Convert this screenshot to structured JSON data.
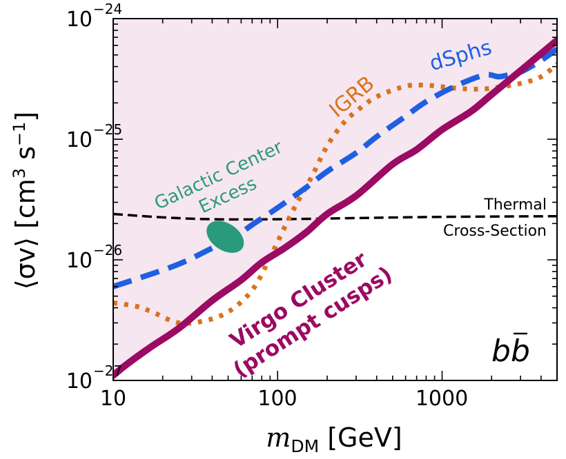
{
  "chart_data": {
    "type": "line",
    "x_scale": "log",
    "y_scale": "log",
    "xlim": [
      10,
      5000
    ],
    "ylim": [
      1e-27,
      1e-24
    ],
    "xlabel": {
      "m": "m",
      "sub": "DM",
      "rest": " [GeV]"
    },
    "ylabel": {
      "pre": "⟨σv⟩ [cm",
      "sup1": "3",
      "mid": " s",
      "sup2": "−1",
      "post": "]"
    },
    "x_ticks": [
      {
        "value": 10,
        "label": "10"
      },
      {
        "value": 100,
        "label": "100"
      },
      {
        "value": 1000,
        "label": "1000"
      }
    ],
    "y_ticks": [
      {
        "value": 1e-27,
        "base": "10",
        "exp": "−27"
      },
      {
        "value": 1e-26,
        "base": "10",
        "exp": "−26"
      },
      {
        "value": 1e-25,
        "base": "10",
        "exp": "−25"
      },
      {
        "value": 1e-24,
        "base": "10",
        "exp": "−24"
      }
    ],
    "grid": false,
    "series": [
      {
        "name": "Virgo Cluster (prompt cusps)",
        "color": "#9b0a63",
        "style": "solid-thick",
        "fill_above": "#f6e6f0",
        "points": [
          [
            10,
            1.1e-27
          ],
          [
            12,
            1.35e-27
          ],
          [
            17,
            1.9e-27
          ],
          [
            25,
            2.7e-27
          ],
          [
            40,
            4.6e-27
          ],
          [
            60,
            6.8e-27
          ],
          [
            80,
            9.5e-27
          ],
          [
            110,
            1.25e-26
          ],
          [
            150,
            1.7e-26
          ],
          [
            200,
            2.4e-26
          ],
          [
            300,
            3.4e-26
          ],
          [
            500,
            6.2e-26
          ],
          [
            700,
            8.2e-26
          ],
          [
            1000,
            1.2e-25
          ],
          [
            1500,
            1.7e-25
          ],
          [
            2000,
            2.35e-25
          ],
          [
            3000,
            3.7e-25
          ],
          [
            5000,
            6.6e-25
          ]
        ]
      },
      {
        "name": "dSphs",
        "color": "#1f5fe0",
        "style": "dashed-thick",
        "points": [
          [
            10,
            6e-27
          ],
          [
            15,
            7.2e-27
          ],
          [
            25,
            9.2e-27
          ],
          [
            40,
            1.25e-26
          ],
          [
            55,
            1.55e-26
          ],
          [
            70,
            1.95e-26
          ],
          [
            100,
            2.7e-26
          ],
          [
            150,
            4e-26
          ],
          [
            200,
            5.4e-26
          ],
          [
            300,
            7.7e-26
          ],
          [
            400,
            1.05e-25
          ],
          [
            600,
            1.55e-25
          ],
          [
            800,
            2.05e-25
          ],
          [
            1200,
            2.75e-25
          ],
          [
            1800,
            3.4e-25
          ],
          [
            2200,
            3.3e-25
          ],
          [
            2500,
            3.4e-25
          ],
          [
            3000,
            3.6e-25
          ],
          [
            4000,
            4.5e-25
          ],
          [
            5000,
            5.6e-25
          ]
        ]
      },
      {
        "name": "IGRB",
        "color": "#d9731d",
        "style": "dotted-thick",
        "points": [
          [
            10,
            4.4e-27
          ],
          [
            14,
            4.1e-27
          ],
          [
            18,
            3.6e-27
          ],
          [
            25,
            3e-27
          ],
          [
            35,
            3.1e-27
          ],
          [
            50,
            3.7e-27
          ],
          [
            70,
            5.6e-27
          ],
          [
            90,
            1.05e-26
          ],
          [
            110,
            1.85e-26
          ],
          [
            130,
            2.9e-26
          ],
          [
            160,
            4.8e-26
          ],
          [
            200,
            8.8e-26
          ],
          [
            250,
            1.35e-25
          ],
          [
            300,
            1.7e-25
          ],
          [
            400,
            2.25e-25
          ],
          [
            600,
            2.75e-25
          ],
          [
            800,
            2.8e-25
          ],
          [
            1200,
            2.65e-25
          ],
          [
            1600,
            2.6e-25
          ],
          [
            2000,
            2.65e-25
          ],
          [
            3000,
            2.9e-25
          ],
          [
            4000,
            3.3e-25
          ],
          [
            5000,
            4.2e-25
          ]
        ]
      },
      {
        "name": "Thermal Cross-Section",
        "color": "#000000",
        "style": "dashed-thin",
        "points": [
          [
            10,
            2.4e-26
          ],
          [
            20,
            2.25e-26
          ],
          [
            40,
            2.17e-26
          ],
          [
            100,
            2.17e-26
          ],
          [
            300,
            2.22e-26
          ],
          [
            1000,
            2.27e-26
          ],
          [
            5000,
            2.3e-26
          ]
        ]
      }
    ],
    "region": {
      "name": "Galactic Center Excess",
      "color": "#2a9a7c",
      "center": [
        48,
        1.55e-26
      ],
      "rx_decades": 0.082,
      "ry_decades": 0.17,
      "tilt_deg": -56
    },
    "annotations": {
      "virgo_line1": "Virgo Cluster",
      "virgo_line2": "(prompt cusps)",
      "dsphs": "dSphs",
      "igrb": "IGRB",
      "gce_line1": "Galactic Center",
      "gce_line2": "Excess",
      "thermal_line1": "Thermal",
      "thermal_line2": "Cross-Section",
      "channel_b": "b",
      "channel_bbar": "b"
    }
  }
}
